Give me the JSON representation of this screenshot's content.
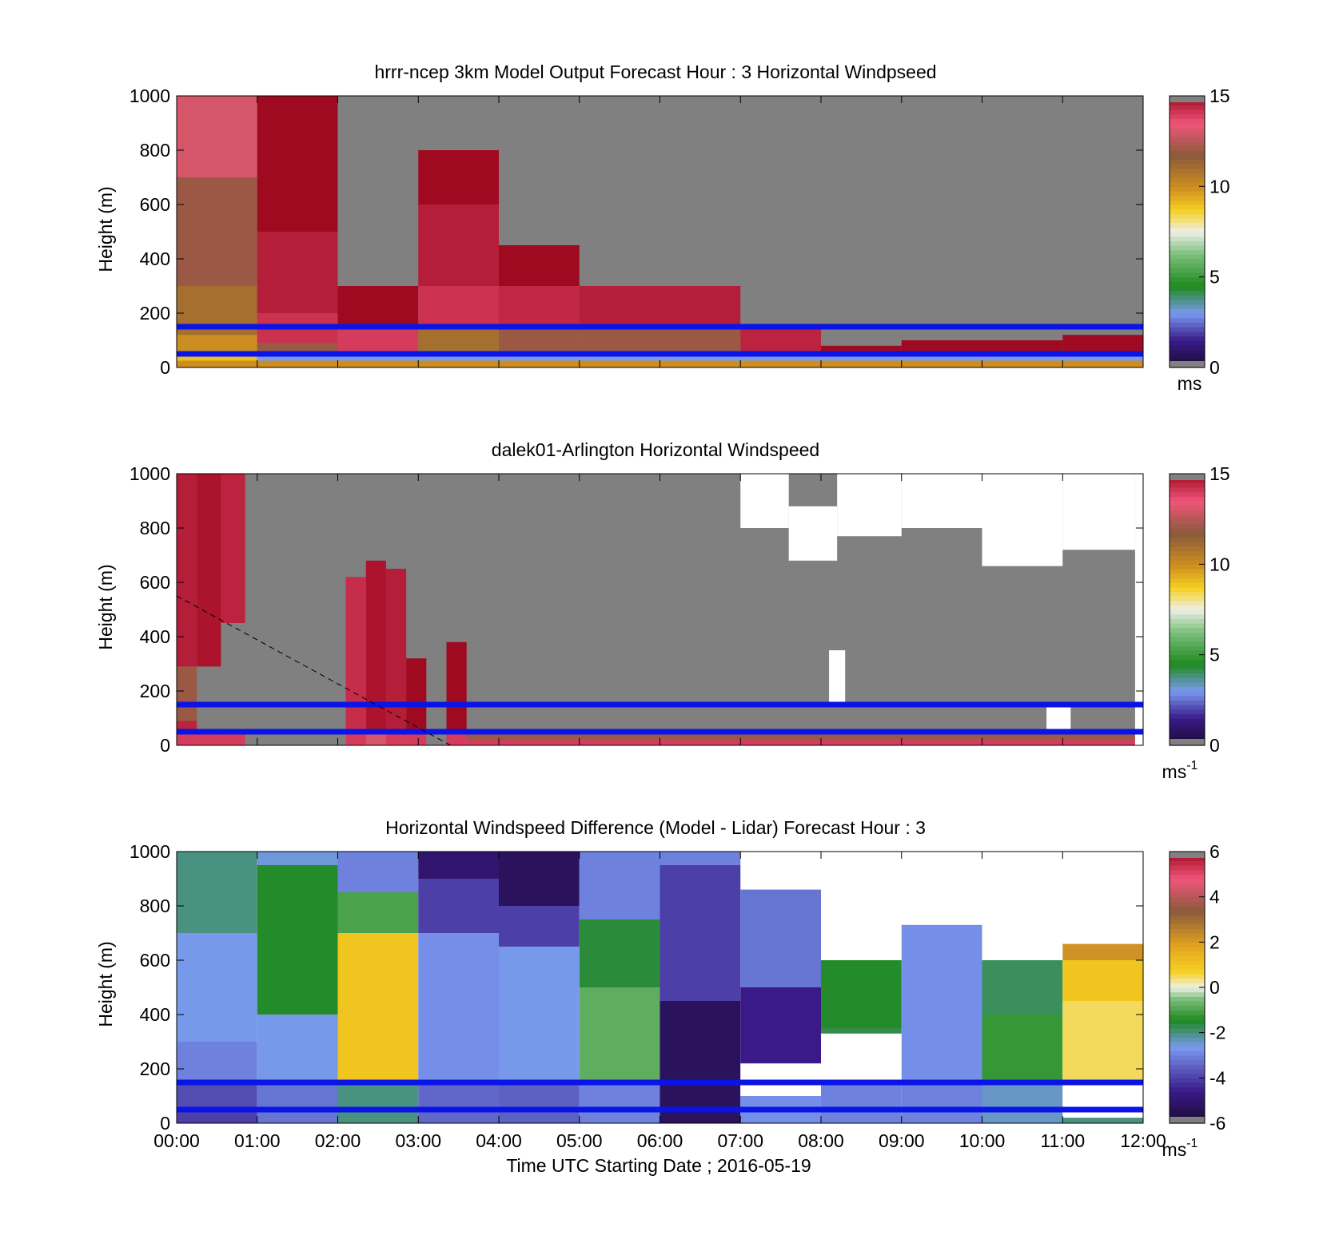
{
  "figure": {
    "xlabel": "Time UTC  Starting Date ; 2016-05-19",
    "x_ticks": [
      "00:00",
      "01:00",
      "02:00",
      "03:00",
      "04:00",
      "05:00",
      "06:00",
      "07:00",
      "08:00",
      "09:00",
      "10:00",
      "11:00",
      "12:00"
    ]
  },
  "chart_data": [
    {
      "type": "heatmap",
      "title": "hrrr-ncep 3km Model Output   Forecast Hour : 3 Horizontal Windpseed",
      "ylabel": "Height (m)",
      "xlim": [
        0,
        12
      ],
      "ylim": [
        0,
        1000
      ],
      "y_ticks": [
        "0",
        "200",
        "400",
        "600",
        "800",
        "1000"
      ],
      "colorbar": {
        "range": [
          0,
          15
        ],
        "ticks": [
          "0",
          "5",
          "10",
          "15"
        ],
        "unit": "ms",
        "exp": ""
      },
      "reference_lines_m": [
        150,
        50
      ],
      "columns": [
        {
          "t0": 0,
          "t1": 1,
          "top": 1000,
          "bands": [
            [
              0,
              25,
              10
            ],
            [
              25,
              35,
              9
            ],
            [
              35,
              60,
              9
            ],
            [
              60,
              120,
              10
            ],
            [
              120,
              300,
              11
            ],
            [
              300,
              700,
              12
            ],
            [
              700,
              1000,
              13
            ]
          ]
        },
        {
          "t0": 1,
          "t1": 2,
          "top": 1000,
          "bands": [
            [
              0,
              25,
              10
            ],
            [
              25,
              50,
              3
            ],
            [
              50,
              90,
              12
            ],
            [
              90,
              200,
              14.2
            ],
            [
              200,
              500,
              14.6
            ],
            [
              500,
              1000,
              15
            ]
          ]
        },
        {
          "t0": 2,
          "t1": 3,
          "top": 300,
          "bands": [
            [
              0,
              25,
              10
            ],
            [
              25,
              50,
              3
            ],
            [
              50,
              150,
              14
            ],
            [
              150,
              300,
              15
            ]
          ]
        },
        {
          "t0": 3,
          "t1": 4,
          "top": 800,
          "bands": [
            [
              0,
              25,
              10
            ],
            [
              25,
              50,
              3
            ],
            [
              50,
              150,
              11
            ],
            [
              150,
              300,
              14.2
            ],
            [
              300,
              600,
              14.6
            ],
            [
              600,
              800,
              15
            ]
          ]
        },
        {
          "t0": 4,
          "t1": 5,
          "top": 450,
          "bands": [
            [
              0,
              25,
              10
            ],
            [
              25,
              50,
              3
            ],
            [
              50,
              150,
              12
            ],
            [
              150,
              300,
              14.4
            ],
            [
              300,
              450,
              15
            ]
          ]
        },
        {
          "t0": 5,
          "t1": 6,
          "top": 300,
          "bands": [
            [
              0,
              25,
              10
            ],
            [
              25,
              50,
              3
            ],
            [
              50,
              150,
              12
            ],
            [
              150,
              300,
              14.6
            ]
          ]
        },
        {
          "t0": 6,
          "t1": 7,
          "top": 300,
          "bands": [
            [
              0,
              25,
              10
            ],
            [
              25,
              50,
              3
            ],
            [
              50,
              150,
              12
            ],
            [
              150,
              300,
              14.6
            ]
          ]
        },
        {
          "t0": 7,
          "t1": 8,
          "top": 150,
          "bands": [
            [
              0,
              25,
              10
            ],
            [
              25,
              50,
              3
            ],
            [
              50,
              150,
              14.5
            ]
          ]
        },
        {
          "t0": 8,
          "t1": 9,
          "top": 80,
          "bands": [
            [
              0,
              25,
              10
            ],
            [
              25,
              50,
              3
            ],
            [
              50,
              80,
              15
            ]
          ]
        },
        {
          "t0": 9,
          "t1": 10,
          "top": 100,
          "bands": [
            [
              0,
              25,
              10
            ],
            [
              25,
              50,
              3
            ],
            [
              50,
              100,
              15
            ]
          ]
        },
        {
          "t0": 10,
          "t1": 11,
          "top": 100,
          "bands": [
            [
              0,
              25,
              10
            ],
            [
              25,
              50,
              3
            ],
            [
              50,
              100,
              15
            ]
          ]
        },
        {
          "t0": 11,
          "t1": 12,
          "top": 120,
          "bands": [
            [
              0,
              25,
              10
            ],
            [
              25,
              50,
              3
            ],
            [
              50,
              120,
              15
            ]
          ]
        }
      ]
    },
    {
      "type": "heatmap",
      "title": "dalek01-Arlington  Horizontal Windspeed",
      "ylabel": "Height (m)",
      "xlim": [
        0,
        12
      ],
      "ylim": [
        0,
        1000
      ],
      "y_ticks": [
        "0",
        "200",
        "400",
        "600",
        "800",
        "1000"
      ],
      "colorbar": {
        "range": [
          0,
          15
        ],
        "ticks": [
          "0",
          "5",
          "10",
          "15"
        ],
        "unit": "ms",
        "exp": "-1"
      },
      "reference_lines_m": [
        150,
        50
      ],
      "diagonal_line": [
        [
          0,
          550
        ],
        [
          3.4,
          0
        ]
      ],
      "columns": [
        {
          "t0": 0.0,
          "t1": 0.25,
          "top": 1000,
          "bands": [
            [
              0,
              50,
              14
            ],
            [
              50,
              90,
              14.5
            ],
            [
              90,
              290,
              12
            ],
            [
              290,
              1000,
              14.6
            ]
          ]
        },
        {
          "t0": 0.25,
          "t1": 0.55,
          "top": 1000,
          "bands": [
            [
              0,
              50,
              14
            ],
            [
              290,
              1000,
              14.8
            ]
          ]
        },
        {
          "t0": 0.55,
          "t1": 0.85,
          "top": 1000,
          "bands": [
            [
              0,
              50,
              14
            ],
            [
              450,
              1000,
              14.5
            ]
          ]
        },
        {
          "t0": 2.1,
          "t1": 2.35,
          "top": 620,
          "bands": [
            [
              0,
              60,
              14
            ],
            [
              60,
              620,
              14.3
            ]
          ]
        },
        {
          "t0": 2.35,
          "t1": 2.6,
          "top": 680,
          "bands": [
            [
              0,
              60,
              13
            ],
            [
              60,
              680,
              14.8
            ]
          ]
        },
        {
          "t0": 2.6,
          "t1": 2.85,
          "top": 650,
          "bands": [
            [
              0,
              60,
              14
            ],
            [
              60,
              650,
              14.6
            ]
          ]
        },
        {
          "t0": 2.85,
          "t1": 3.1,
          "top": 320,
          "bands": [
            [
              0,
              60,
              14
            ],
            [
              60,
              320,
              15
            ]
          ]
        },
        {
          "t0": 3.35,
          "t1": 3.6,
          "top": 380,
          "bands": [
            [
              0,
              60,
              14
            ],
            [
              60,
              380,
              15
            ]
          ]
        },
        {
          "t0": 3.6,
          "t1": 12.0,
          "top": 50,
          "bands": [
            [
              0,
              20,
              14
            ],
            [
              20,
              50,
              12
            ]
          ]
        }
      ],
      "missing_gaps": [
        {
          "t0": 7.0,
          "t1": 7.6,
          "y0": 800,
          "y1": 1000
        },
        {
          "t0": 7.6,
          "t1": 8.2,
          "y0": 680,
          "y1": 880
        },
        {
          "t0": 8.2,
          "t1": 9.0,
          "y0": 770,
          "y1": 1000
        },
        {
          "t0": 9.0,
          "t1": 10.0,
          "y0": 800,
          "y1": 1000
        },
        {
          "t0": 10.0,
          "t1": 11.0,
          "y0": 660,
          "y1": 1000
        },
        {
          "t0": 11.0,
          "t1": 11.9,
          "y0": 720,
          "y1": 1000
        },
        {
          "t0": 8.1,
          "t1": 8.3,
          "y0": 150,
          "y1": 350
        },
        {
          "t0": 10.8,
          "t1": 11.1,
          "y0": 60,
          "y1": 150
        },
        {
          "t0": 11.9,
          "t1": 12.0,
          "y0": 0,
          "y1": 1000
        }
      ]
    },
    {
      "type": "heatmap",
      "title": "Horizontal Windspeed Difference (Model - Lidar) Forecast Hour : 3",
      "ylabel": "Height (m)",
      "xlim": [
        0,
        12
      ],
      "ylim": [
        0,
        1000
      ],
      "y_ticks": [
        "0",
        "200",
        "400",
        "600",
        "800",
        "1000"
      ],
      "colorbar": {
        "range": [
          -6,
          6
        ],
        "ticks": [
          "-6",
          "-4",
          "-2",
          "0",
          "2",
          "4",
          "6"
        ],
        "unit": "ms",
        "exp": "-1"
      },
      "reference_lines_m": [
        150,
        50
      ],
      "columns": [
        {
          "t0": 0,
          "t1": 1,
          "top": 1000,
          "bands": [
            [
              0,
              40,
              -4
            ],
            [
              40,
              150,
              -3.8
            ],
            [
              150,
              300,
              -3
            ],
            [
              300,
              700,
              -2.6
            ],
            [
              700,
              1000,
              -2
            ]
          ]
        },
        {
          "t0": 1,
          "t1": 2,
          "top": 1000,
          "bands": [
            [
              0,
              150,
              -3.2
            ],
            [
              150,
              400,
              -2.6
            ],
            [
              400,
              950,
              -1.5
            ],
            [
              950,
              1000,
              -2.5
            ]
          ]
        },
        {
          "t0": 2,
          "t1": 3,
          "top": 1000,
          "bands": [
            [
              0,
              150,
              -2
            ],
            [
              150,
              700,
              1
            ],
            [
              700,
              850,
              -1
            ],
            [
              850,
              1000,
              -3
            ]
          ]
        },
        {
          "t0": 3,
          "t1": 4,
          "top": 1000,
          "bands": [
            [
              0,
              150,
              -3.4
            ],
            [
              150,
              700,
              -2.8
            ],
            [
              700,
              900,
              -4
            ],
            [
              900,
              1000,
              -5
            ]
          ]
        },
        {
          "t0": 4,
          "t1": 5,
          "top": 1000,
          "bands": [
            [
              0,
              150,
              -3.5
            ],
            [
              150,
              650,
              -2.6
            ],
            [
              650,
              800,
              -4
            ],
            [
              800,
              1000,
              -5.3
            ]
          ]
        },
        {
          "t0": 5,
          "t1": 6,
          "top": 1000,
          "bands": [
            [
              0,
              150,
              -3
            ],
            [
              150,
              500,
              -0.8
            ],
            [
              500,
              750,
              -1.6
            ],
            [
              750,
              1000,
              -3
            ]
          ]
        },
        {
          "t0": 6,
          "t1": 7,
          "top": 1000,
          "bands": [
            [
              0,
              450,
              -5.3
            ],
            [
              450,
              950,
              -4
            ],
            [
              950,
              1000,
              -3
            ]
          ]
        },
        {
          "t0": 7,
          "t1": 8,
          "top": 860,
          "bands": [
            [
              0,
              150,
              -2.8
            ],
            [
              150,
              500,
              -4.6
            ],
            [
              500,
              860,
              -3.2
            ]
          ]
        },
        {
          "t0": 8,
          "t1": 9,
          "top": 600,
          "bands": [
            [
              0,
              150,
              -3
            ],
            [
              150,
              350,
              -1.7
            ],
            [
              350,
              600,
              -1.5
            ]
          ]
        },
        {
          "t0": 9,
          "t1": 10,
          "top": 730,
          "bands": [
            [
              0,
              150,
              -3
            ],
            [
              150,
              730,
              -2.8
            ]
          ]
        },
        {
          "t0": 10,
          "t1": 11,
          "top": 600,
          "bands": [
            [
              0,
              150,
              -2.4
            ],
            [
              150,
              400,
              -1.2
            ],
            [
              400,
              600,
              -1.8
            ]
          ]
        },
        {
          "t0": 11,
          "t1": 12,
          "top": 660,
          "bands": [
            [
              0,
              150,
              -2
            ],
            [
              150,
              450,
              0.5
            ],
            [
              450,
              600,
              1
            ],
            [
              600,
              660,
              2.2
            ]
          ]
        }
      ],
      "missing_gaps": [
        {
          "t0": 7.0,
          "t1": 8.0,
          "y0": 100,
          "y1": 220
        },
        {
          "t0": 8.0,
          "t1": 9.0,
          "y0": 150,
          "y1": 330
        },
        {
          "t0": 11.0,
          "t1": 12.0,
          "y0": 20,
          "y1": 150
        }
      ]
    }
  ]
}
